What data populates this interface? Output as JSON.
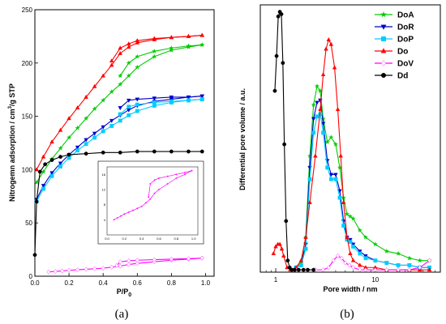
{
  "chart_data": [
    {
      "type": "line",
      "panel_label": "(a)",
      "xlabel": "P/P0",
      "ylabel": "Nitrogemn adsorption / cm3/g STP",
      "xlim": [
        0,
        1.05
      ],
      "ylim": [
        0,
        250
      ],
      "xticks": [
        0.0,
        0.2,
        0.4,
        0.6,
        0.8,
        1.0
      ],
      "yticks": [
        0,
        50,
        100,
        150,
        200,
        250
      ],
      "series": [
        {
          "color": "#ff0000",
          "marker": "triangle-up",
          "adsorption": {
            "x": [
              0.01,
              0.05,
              0.1,
              0.15,
              0.2,
              0.25,
              0.3,
              0.35,
              0.4,
              0.45,
              0.5,
              0.55,
              0.6,
              0.7,
              0.8,
              0.9,
              0.98
            ],
            "y": [
              100,
              112,
              126,
              137,
              148,
              158,
              168,
              178,
              188,
              198,
              209,
              215,
              219,
              222,
              224,
              225,
              226
            ]
          },
          "desorption": {
            "x": [
              0.98,
              0.9,
              0.8,
              0.7,
              0.6,
              0.55,
              0.5,
              0.45
            ],
            "y": [
              226,
              225,
              224,
              223,
              221,
              218,
              214,
              202
            ]
          }
        },
        {
          "color": "#00cc00",
          "marker": "star",
          "adsorption": {
            "x": [
              0.01,
              0.05,
              0.1,
              0.15,
              0.2,
              0.25,
              0.3,
              0.35,
              0.4,
              0.45,
              0.5,
              0.55,
              0.6,
              0.7,
              0.8,
              0.9,
              0.98
            ],
            "y": [
              88,
              98,
              110,
              120,
              130,
              139,
              148,
              157,
              165,
              173,
              180,
              188,
              196,
              206,
              212,
              215,
              217
            ]
          },
          "desorption": {
            "x": [
              0.98,
              0.9,
              0.8,
              0.7,
              0.6,
              0.55,
              0.5
            ],
            "y": [
              217,
              216,
              214,
              211,
              206,
              200,
              188
            ]
          }
        },
        {
          "color": "#0000cc",
          "marker": "triangle-down",
          "adsorption": {
            "x": [
              0.01,
              0.05,
              0.1,
              0.15,
              0.2,
              0.25,
              0.3,
              0.35,
              0.4,
              0.45,
              0.5,
              0.55,
              0.6,
              0.7,
              0.8,
              0.9,
              0.98
            ],
            "y": [
              72,
              85,
              97,
              106,
              114,
              121,
              128,
              134,
              140,
              146,
              151,
              156,
              160,
              164,
              166,
              168,
              169
            ]
          },
          "desorption": {
            "x": [
              0.98,
              0.9,
              0.8,
              0.7,
              0.6,
              0.55,
              0.5
            ],
            "y": [
              169,
              168,
              168,
              167,
              166,
              165,
              158
            ]
          }
        },
        {
          "color": "#00ccff",
          "marker": "square",
          "adsorption": {
            "x": [
              0.01,
              0.05,
              0.1,
              0.15,
              0.2,
              0.25,
              0.3,
              0.35,
              0.4,
              0.45,
              0.5,
              0.55,
              0.6,
              0.7,
              0.8,
              0.9,
              0.98
            ],
            "y": [
              70,
              82,
              94,
              103,
              111,
              118,
              124,
              130,
              136,
              141,
              146,
              151,
              155,
              160,
              163,
              165,
              166
            ]
          },
          "desorption": {
            "x": [
              0.98,
              0.9,
              0.8,
              0.7,
              0.6,
              0.55,
              0.5
            ],
            "y": [
              166,
              165,
              164,
              163,
              161,
              159,
              152
            ]
          }
        },
        {
          "color": "#000000",
          "marker": "circle",
          "adsorption": {
            "x": [
              0.0,
              0.01,
              0.03,
              0.06,
              0.1,
              0.15,
              0.2,
              0.3,
              0.4,
              0.5,
              0.6,
              0.7,
              0.8,
              0.9,
              0.98
            ],
            "y": [
              20,
              70,
              98,
              105,
              109,
              112,
              114,
              115,
              116,
              116,
              117,
              117,
              117,
              117,
              117
            ]
          },
          "desorption": {
            "x": [],
            "y": []
          }
        },
        {
          "color": "#ff00ff",
          "marker": "diamond",
          "adsorption": {
            "x": [
              0.08,
              0.12,
              0.16,
              0.2,
              0.25,
              0.3,
              0.35,
              0.4,
              0.45,
              0.5,
              0.55,
              0.6,
              0.7,
              0.8,
              0.9,
              0.98
            ],
            "y": [
              4,
              4.5,
              5,
              5.5,
              6,
              6.5,
              7,
              7.5,
              8.5,
              9.5,
              11,
              12,
              13.5,
              15,
              16,
              17
            ]
          },
          "desorption": {
            "x": [
              0.98,
              0.9,
              0.8,
              0.7,
              0.6,
              0.55,
              0.5,
              0.48
            ],
            "y": [
              17,
              16.5,
              16,
              15.5,
              15,
              14.5,
              13.5,
              10
            ]
          }
        }
      ],
      "inset": {
        "xlim": [
          0,
          1.05
        ],
        "ylim": [
          0,
          18
        ],
        "xticks": [
          0.0,
          0.2,
          0.4,
          0.6,
          0.8,
          1.0
        ],
        "yticks": [
          4,
          8,
          12,
          16
        ],
        "color": "#ff00ff",
        "adsorption": {
          "x": [
            0.08,
            0.12,
            0.16,
            0.2,
            0.25,
            0.3,
            0.35,
            0.4,
            0.45,
            0.5,
            0.55,
            0.6,
            0.7,
            0.8,
            0.9,
            0.98
          ],
          "y": [
            4,
            4.5,
            5,
            5.5,
            6,
            6.5,
            7,
            7.5,
            8.5,
            9.5,
            11,
            12,
            13.5,
            15,
            16,
            17
          ]
        },
        "desorption": {
          "x": [
            0.98,
            0.9,
            0.8,
            0.7,
            0.6,
            0.55,
            0.5,
            0.48
          ],
          "y": [
            17,
            16.5,
            16,
            15.5,
            15,
            14.5,
            13.5,
            10
          ]
        }
      }
    },
    {
      "type": "line",
      "panel_label": "(b)",
      "xlabel": "Pore width / nm",
      "ylabel": "Differential pore volume / a.u.",
      "xscale": "log",
      "xlim": [
        0.7,
        45
      ],
      "ylim": [
        0,
        1.15
      ],
      "xticks": [
        1,
        10
      ],
      "legend": "top-right",
      "series": [
        {
          "name": "DoA",
          "color": "#00cc00",
          "marker": "star",
          "x": [
            1.6,
            1.8,
            2.0,
            2.2,
            2.4,
            2.6,
            2.8,
            3.0,
            3.3,
            3.6,
            4.0,
            4.4,
            4.8,
            5.2,
            5.6,
            6.0,
            7,
            8,
            10,
            13,
            17,
            22,
            28,
            35
          ],
          "y": [
            0.02,
            0.04,
            0.15,
            0.5,
            0.72,
            0.8,
            0.78,
            0.66,
            0.56,
            0.58,
            0.55,
            0.45,
            0.32,
            0.25,
            0.24,
            0.23,
            0.18,
            0.15,
            0.12,
            0.09,
            0.08,
            0.06,
            0.05,
            0.05
          ]
        },
        {
          "name": "DoR",
          "color": "#0000cc",
          "marker": "triangle-down",
          "x": [
            1.6,
            1.8,
            2.0,
            2.2,
            2.4,
            2.6,
            2.8,
            3.0,
            3.3,
            3.6,
            4.0,
            4.4,
            4.8,
            5.2,
            5.6,
            6.0,
            7,
            8,
            10,
            13,
            17,
            22,
            28,
            35
          ],
          "y": [
            0.02,
            0.03,
            0.12,
            0.45,
            0.66,
            0.73,
            0.74,
            0.64,
            0.48,
            0.42,
            0.42,
            0.35,
            0.22,
            0.15,
            0.14,
            0.12,
            0.09,
            0.07,
            0.05,
            0.04,
            0.03,
            0.03,
            0.02,
            0.02
          ]
        },
        {
          "name": "DoP",
          "color": "#00ccff",
          "marker": "square",
          "x": [
            1.6,
            1.8,
            2.0,
            2.2,
            2.4,
            2.6,
            2.8,
            3.0,
            3.3,
            3.6,
            4.0,
            4.4,
            4.8,
            5.2,
            5.6,
            6.0,
            7,
            8,
            10,
            13,
            17,
            22,
            28,
            35
          ],
          "y": [
            0.02,
            0.03,
            0.1,
            0.4,
            0.6,
            0.67,
            0.68,
            0.6,
            0.45,
            0.4,
            0.4,
            0.32,
            0.2,
            0.14,
            0.13,
            0.11,
            0.08,
            0.06,
            0.05,
            0.04,
            0.03,
            0.03,
            0.02,
            0.02
          ]
        },
        {
          "name": "Do",
          "color": "#ff0000",
          "marker": "triangle-up",
          "x": [
            0.95,
            1.0,
            1.05,
            1.1,
            1.15,
            1.2,
            1.3,
            1.4,
            1.6,
            1.8,
            2.0,
            2.2,
            2.5,
            2.8,
            3.0,
            3.2,
            3.4,
            3.6,
            3.9,
            4.2,
            4.5,
            4.8,
            5.2,
            5.6,
            6.0,
            7,
            8,
            10,
            13,
            17,
            22,
            28,
            35
          ],
          "y": [
            0.08,
            0.11,
            0.12,
            0.12,
            0.1,
            0.07,
            0.02,
            0.01,
            0.02,
            0.05,
            0.15,
            0.3,
            0.5,
            0.7,
            0.85,
            0.96,
            1.0,
            0.98,
            0.88,
            0.7,
            0.5,
            0.3,
            0.15,
            0.08,
            0.05,
            0.03,
            0.02,
            0.02,
            0.01,
            0.01,
            0.01,
            0.01,
            0.01
          ]
        },
        {
          "name": "DoV",
          "color": "#ff00ff",
          "marker": "diamond",
          "x": [
            1.6,
            2.0,
            2.5,
            3.0,
            3.4,
            3.8,
            4.2,
            4.6,
            5.0,
            5.5,
            6.0,
            7,
            8,
            10,
            13,
            17,
            22,
            28,
            35
          ],
          "y": [
            0.01,
            0.01,
            0.01,
            0.01,
            0.02,
            0.05,
            0.07,
            0.06,
            0.04,
            0.03,
            0.02,
            0.01,
            0.01,
            0.01,
            0.01,
            0.01,
            0.01,
            0.02,
            0.05
          ]
        },
        {
          "name": "Dd",
          "color": "#000000",
          "marker": "circle",
          "x": [
            0.98,
            1.02,
            1.06,
            1.1,
            1.14,
            1.18,
            1.22,
            1.27,
            1.32,
            1.38,
            1.45,
            1.55,
            1.7,
            1.9,
            2.1,
            2.4
          ],
          "y": [
            0.78,
            0.93,
            1.1,
            1.12,
            1.11,
            0.9,
            0.55,
            0.22,
            0.05,
            0.02,
            0.01,
            0.01,
            0.01,
            0.01,
            0.01,
            0.01
          ]
        }
      ]
    }
  ],
  "labels": {
    "a": {
      "ylabel_main": "Nitrogemn adsorption / cm",
      "ylabel_sup": "3",
      "ylabel_rest": "/g STP",
      "xlabel_main": "P/P",
      "xlabel_sub": "0",
      "panel": "(a)"
    },
    "b": {
      "ylabel": "Differential pore volume / a.u.",
      "xlabel": "Pore width / nm",
      "panel": "(b)"
    }
  }
}
